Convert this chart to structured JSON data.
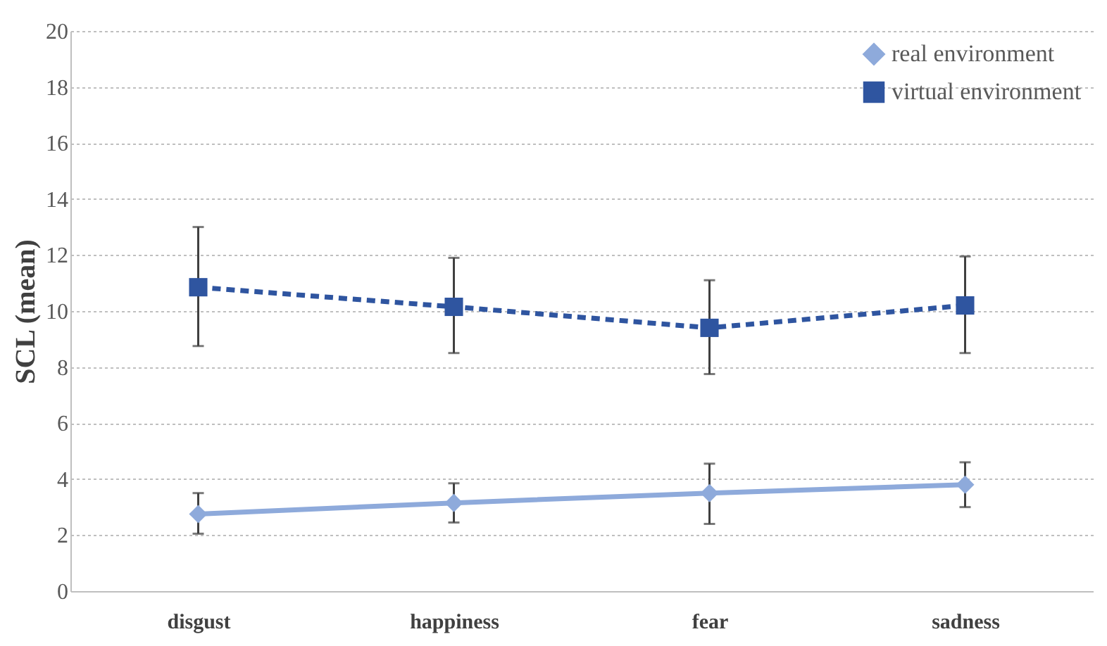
{
  "chart_data": {
    "type": "line",
    "ylabel": "SCL (mean)",
    "categories": [
      "disgust",
      "happiness",
      "fear",
      "sadness"
    ],
    "series": [
      {
        "name": "real environment",
        "color": "#8eaadb",
        "marker": "diamond",
        "line_style": "solid",
        "values": [
          2.75,
          3.15,
          3.5,
          3.8
        ],
        "errors": [
          [
            2.05,
            3.5
          ],
          [
            2.45,
            3.85
          ],
          [
            2.4,
            4.55
          ],
          [
            3.0,
            4.6
          ]
        ]
      },
      {
        "name": "virtual environment",
        "color": "#2f55a0",
        "marker": "square",
        "line_style": "dashed",
        "values": [
          10.85,
          10.15,
          9.4,
          10.2
        ],
        "errors": [
          [
            8.75,
            13.0
          ],
          [
            8.5,
            11.9
          ],
          [
            7.75,
            11.1
          ],
          [
            8.5,
            11.95
          ]
        ]
      }
    ],
    "ylim": [
      0,
      20
    ],
    "yticks": [
      0,
      2,
      4,
      6,
      8,
      10,
      12,
      14,
      16,
      18,
      20
    ],
    "grid": "y",
    "legend": "top right"
  }
}
